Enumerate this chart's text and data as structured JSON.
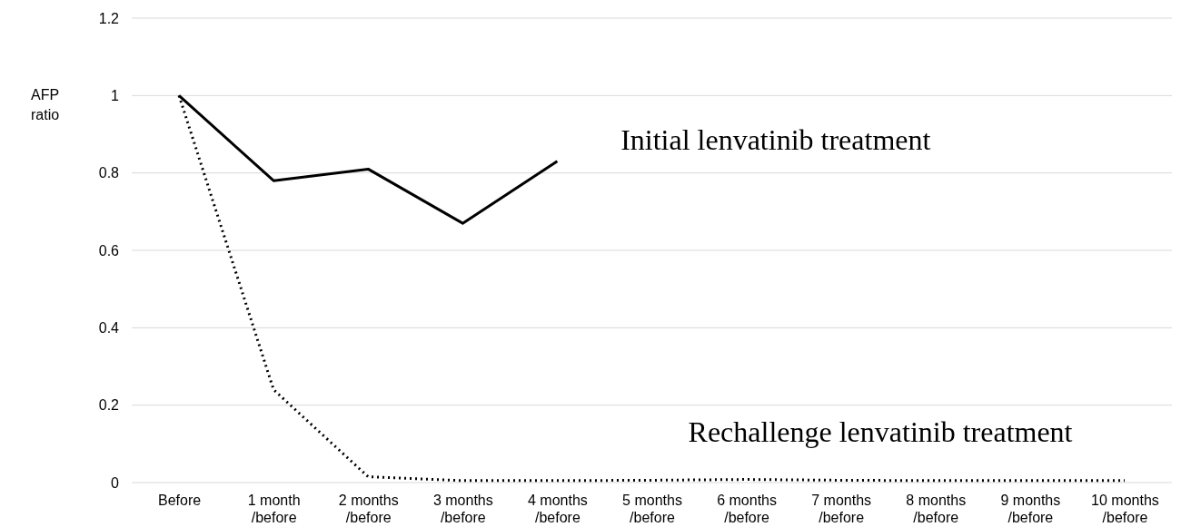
{
  "chart_data": {
    "type": "line",
    "ylabel": "AFP ratio",
    "categories": [
      "Before",
      "1 month /before",
      "2 months /before",
      "3 months /before",
      "4 months /before",
      "5 months /before",
      "6 months /before",
      "7 months /before",
      "8 months /before",
      "9 months /before",
      "10 months /before"
    ],
    "series": [
      {
        "name": "Initial lenvatinib treatment",
        "color": "#000000",
        "line_style": "solid",
        "values": [
          1,
          0.78,
          0.81,
          0.67,
          0.83,
          null,
          null,
          null,
          null,
          null,
          null
        ]
      },
      {
        "name": "Rechallenge lenvatinib treatment",
        "color": "#000000",
        "line_style": "dotted",
        "values": [
          1,
          0.24,
          0.015,
          0.005,
          0.005,
          0.006,
          0.008,
          0.006,
          0.005,
          0.005,
          0.005
        ]
      }
    ],
    "ylim": [
      0,
      1.2
    ],
    "yticks": [
      0,
      0.2,
      0.4,
      0.6,
      0.8,
      1,
      1.2
    ],
    "grid": "y",
    "marker": "none"
  }
}
